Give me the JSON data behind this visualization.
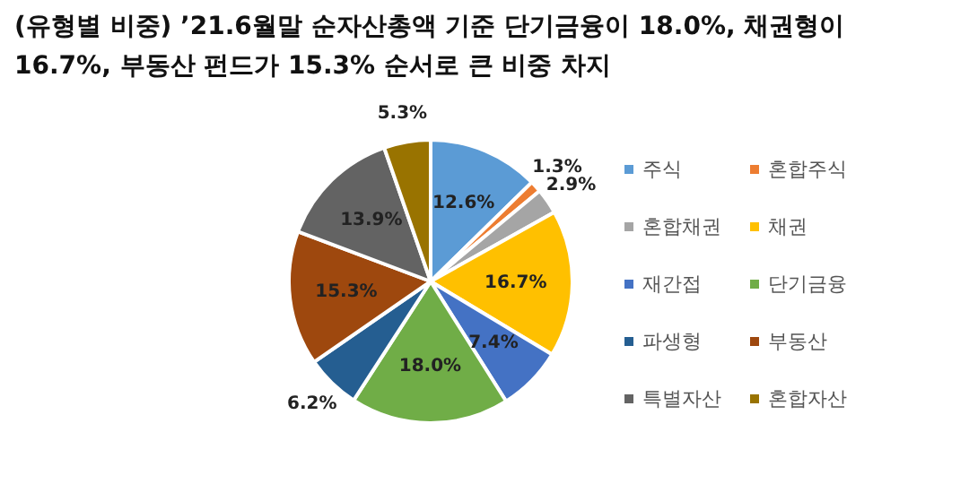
{
  "chart_data": {
    "type": "pie",
    "title": "(유형별 비중) ’21.6월말 순자산총액 기준 단기금융이 18.0%, 채권형이 16.7%, 부동산 펀드가 15.3% 순서로 큰 비중 차지",
    "categories": [
      "주식",
      "혼합주식",
      "혼합채권",
      "채권",
      "재간접",
      "단기금융",
      "파생형",
      "부동산",
      "특별자산",
      "혼합자산"
    ],
    "values": [
      12.6,
      1.3,
      2.9,
      16.7,
      7.4,
      18.0,
      6.2,
      15.3,
      13.9,
      5.3
    ],
    "colors": [
      "#5b9bd5",
      "#ed7d31",
      "#a5a5a5",
      "#ffc000",
      "#4472c4",
      "#70ad47",
      "#255e91",
      "#9e480e",
      "#636363",
      "#997300"
    ],
    "value_labels": [
      "12.6%",
      "1.3%",
      "2.9%",
      "16.7%",
      "7.4%",
      "18.0%",
      "6.2%",
      "15.3%",
      "13.9%",
      "5.3%"
    ],
    "legend": "right"
  }
}
